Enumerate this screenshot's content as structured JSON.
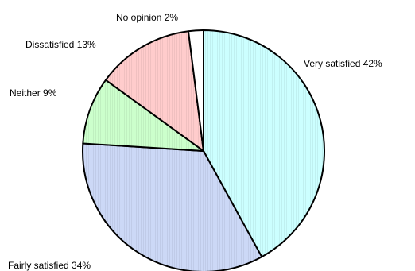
{
  "chart_data": {
    "type": "pie",
    "title": "",
    "slices": [
      {
        "label": "Very satisfied",
        "value": 42,
        "display": "Very satisfied  42%",
        "color": "#ccffff"
      },
      {
        "label": "Fairly satisfied",
        "value": 34,
        "display": "Fairly satisfied  34%",
        "color": "#ccd8f6"
      },
      {
        "label": "Neither",
        "value": 9,
        "display": "Neither  9%",
        "color": "#ccffcc"
      },
      {
        "label": "Dissatisfied",
        "value": 13,
        "display": "Dissatisfied  13%",
        "color": "#ffcccc"
      },
      {
        "label": "No opinion",
        "value": 2,
        "display": "No opinion  2%",
        "color": "#ffffff"
      }
    ],
    "start_angle": "12 o'clock",
    "direction": "clockwise",
    "legend": "none",
    "labels_outside": true
  }
}
